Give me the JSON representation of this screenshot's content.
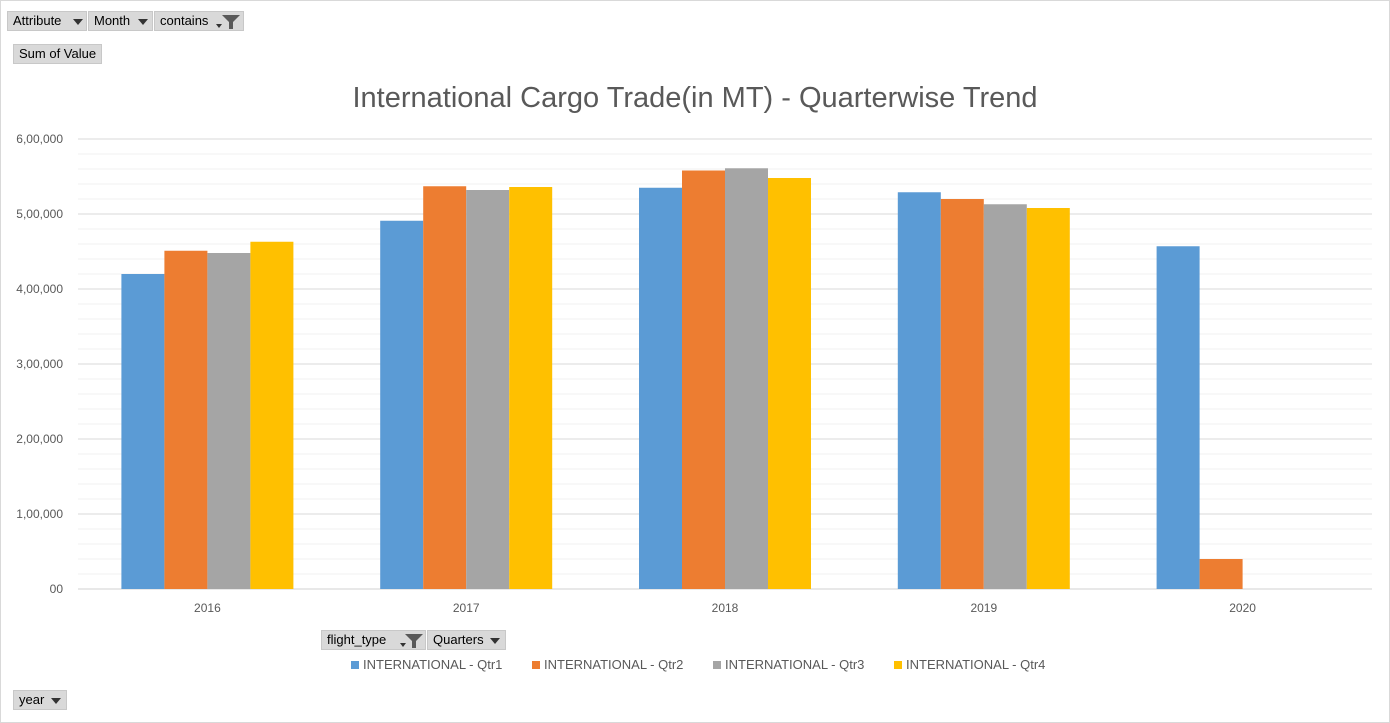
{
  "filter_buttons": {
    "attribute": "Attribute",
    "month": "Month",
    "contains": "contains",
    "sum_of_value": "Sum of Value",
    "flight_type": "flight_type",
    "quarters": "Quarters",
    "year": "year"
  },
  "icons": {
    "dropdown": "chevron-down-icon",
    "filter": "funnel-filter-icon"
  },
  "chart_data": {
    "type": "bar",
    "title": "International Cargo Trade(in MT) - Quarterwise Trend",
    "xlabel": "",
    "ylabel": "",
    "categories": [
      "2016",
      "2017",
      "2018",
      "2019",
      "2020"
    ],
    "y_ticks": [
      "00",
      "1,00,000",
      "2,00,000",
      "3,00,000",
      "4,00,000",
      "5,00,000",
      "6,00,000"
    ],
    "ylim": [
      0,
      600000
    ],
    "grid": true,
    "legend_position": "bottom",
    "series": [
      {
        "name": "INTERNATIONAL - Qtr1",
        "color": "#5b9bd5",
        "values": [
          420000,
          491000,
          535000,
          529000,
          457000
        ]
      },
      {
        "name": "INTERNATIONAL - Qtr2",
        "color": "#ed7d31",
        "values": [
          451000,
          537000,
          558000,
          520000,
          40000
        ]
      },
      {
        "name": "INTERNATIONAL - Qtr3",
        "color": "#a5a5a5",
        "values": [
          448000,
          532000,
          561000,
          513000,
          null
        ]
      },
      {
        "name": "INTERNATIONAL - Qtr4",
        "color": "#ffc000",
        "values": [
          463000,
          536000,
          548000,
          508000,
          null
        ]
      }
    ]
  }
}
